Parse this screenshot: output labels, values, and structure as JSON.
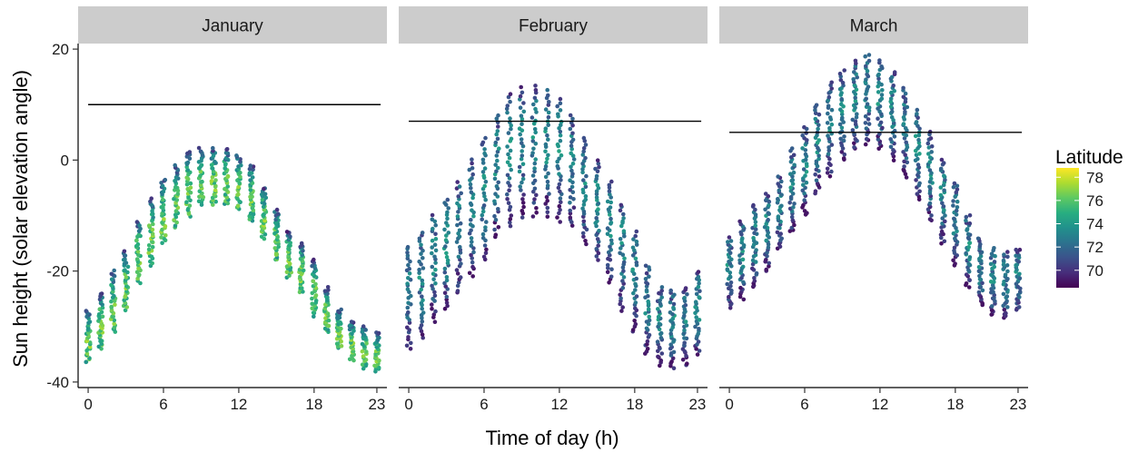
{
  "chart_data": {
    "type": "scatter",
    "xlabel": "Time of day (h)",
    "ylabel": "Sun height (solar elevation angle)",
    "x_ticks": [
      0,
      6,
      12,
      18,
      23
    ],
    "y_ticks": [
      20,
      0,
      -20,
      -40
    ],
    "xlim": [
      -0.8,
      23.8
    ],
    "ylim": [
      -41,
      21
    ],
    "grid": false,
    "facets": [
      {
        "label": "January",
        "threshold": 10,
        "hours": [
          0,
          1,
          2,
          3,
          4,
          5,
          6,
          7,
          8,
          9,
          10,
          11,
          12,
          13,
          14,
          15,
          16,
          17,
          18,
          19,
          20,
          21,
          22,
          23
        ],
        "top": [
          -27,
          -24,
          -20,
          -16.5,
          -11,
          -7,
          -3.5,
          -1,
          1.5,
          2,
          2,
          2,
          1,
          -1,
          -5,
          -9,
          -13,
          -15,
          -18,
          -23,
          -27,
          -29,
          -30,
          -31
        ],
        "bottom": [
          -36.5,
          -34,
          -31,
          -27,
          -22,
          -19,
          -15,
          -12,
          -10,
          -8,
          -8,
          -8,
          -9,
          -11,
          -14,
          -18,
          -21,
          -24,
          -28,
          -31,
          -34,
          -36,
          -37.5,
          -38
        ]
      },
      {
        "label": "February",
        "threshold": 7,
        "hours": [
          0,
          1,
          2,
          3,
          4,
          5,
          6,
          7,
          8,
          9,
          10,
          11,
          12,
          13,
          14,
          15,
          16,
          17,
          18,
          19,
          20,
          21,
          22,
          23
        ],
        "top": [
          -15.5,
          -13,
          -10,
          -7,
          -4,
          0,
          4,
          8,
          12,
          13,
          13.5,
          12.5,
          11,
          8,
          4,
          0,
          -4,
          -8,
          -13,
          -19,
          -23,
          -23.5,
          -23,
          -20
        ],
        "bottom": [
          -34,
          -32,
          -29,
          -27,
          -24,
          -21,
          -18,
          -14,
          -12,
          -10.5,
          -10,
          -10,
          -11,
          -12,
          -15,
          -18,
          -22,
          -27,
          -31,
          -35,
          -37,
          -37.5,
          -37,
          -35
        ]
      },
      {
        "label": "March",
        "threshold": 5,
        "hours": [
          0,
          1,
          2,
          3,
          4,
          5,
          6,
          7,
          8,
          9,
          10,
          11,
          12,
          13,
          14,
          15,
          16,
          17,
          18,
          19,
          20,
          21,
          22,
          23
        ],
        "top": [
          -14,
          -11,
          -8,
          -6,
          -3,
          2,
          6,
          10,
          14,
          16,
          18,
          19,
          18,
          16,
          13,
          9,
          5,
          0,
          -4,
          -10,
          -14,
          -16,
          -16.5,
          -16
        ],
        "bottom": [
          -26.5,
          -25,
          -23,
          -20,
          -16,
          -13,
          -10,
          -6,
          -3,
          0,
          2,
          3,
          2,
          0,
          -3,
          -7,
          -11,
          -15,
          -19,
          -23,
          -26,
          -28,
          -28.5,
          -27
        ]
      }
    ],
    "legend": {
      "title": "Latitude",
      "labels": [
        78,
        76,
        74,
        72,
        70
      ],
      "range": [
        68.5,
        78.8
      ],
      "placement": "right",
      "colormap": "viridis"
    }
  }
}
